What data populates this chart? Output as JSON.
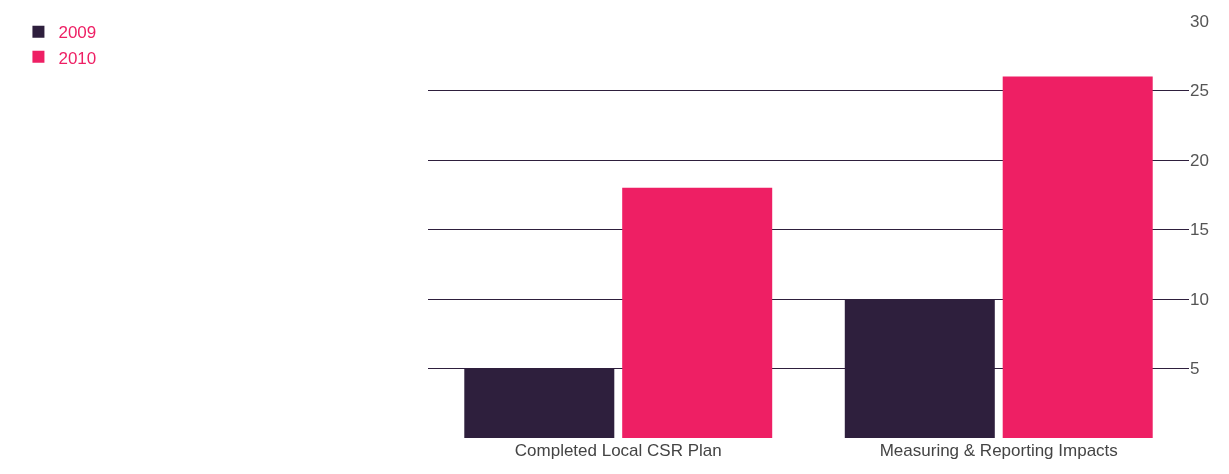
{
  "chart_data": {
    "type": "bar",
    "categories": [
      "Completed Local CSR Plan",
      "Measuring & Reporting Impacts"
    ],
    "series": [
      {
        "name": "2009",
        "color": "#2e1f3d",
        "values": [
          5,
          10
        ]
      },
      {
        "name": "2010",
        "color": "#ee1f64",
        "values": [
          18,
          26
        ]
      }
    ],
    "ylim": [
      0,
      30
    ],
    "yticks": [
      5,
      10,
      15,
      20,
      25,
      30
    ],
    "grid": "y",
    "legend": "top left"
  }
}
